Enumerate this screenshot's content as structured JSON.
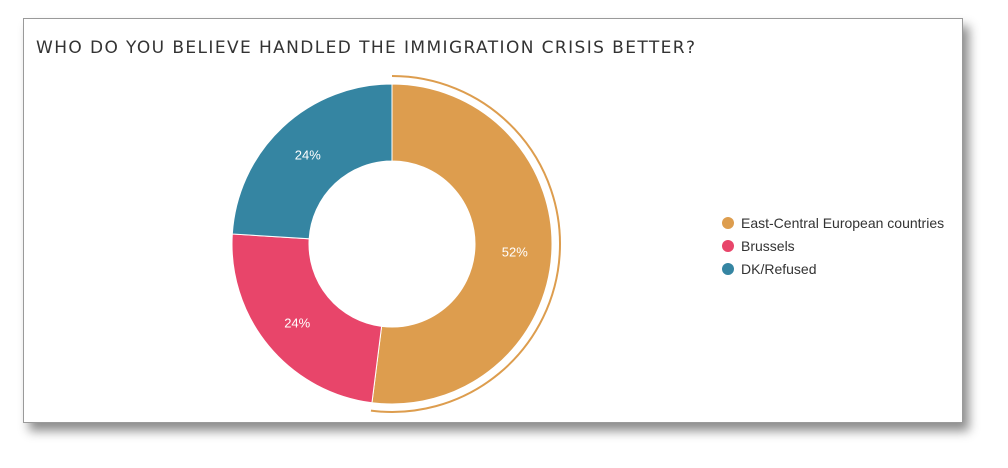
{
  "chart_data": {
    "type": "pie",
    "title": "WHO DO YOU BELIEVE HANDLED THE IMMIGRATION CRISIS BETTER?",
    "donut": true,
    "categories": [
      "East-Central European countries",
      "Brussels",
      "DK/Refused"
    ],
    "values": [
      52,
      24,
      24
    ],
    "labels": [
      "52%",
      "24%",
      "24%"
    ],
    "colors": [
      "#dd9d4e",
      "#e8456a",
      "#3585a2"
    ],
    "highlighted": "East-Central European countries",
    "legend_position": "right"
  }
}
